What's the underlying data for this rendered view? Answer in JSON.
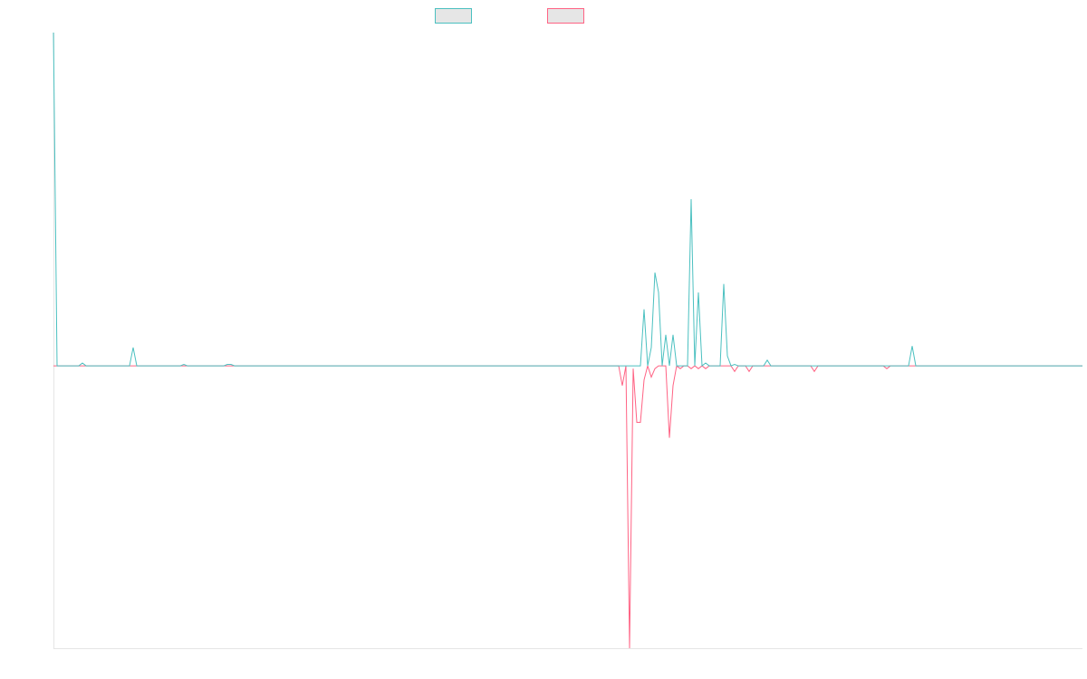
{
  "chart_data": {
    "type": "line",
    "title": "",
    "xlabel": "",
    "ylabel": "",
    "x": [
      0,
      1,
      2,
      3,
      4,
      5,
      6,
      7,
      8,
      9,
      10,
      11,
      12,
      13,
      14,
      15,
      16,
      17,
      18,
      19,
      20,
      21,
      22,
      23,
      24,
      25,
      26,
      27,
      28,
      29,
      30,
      31,
      32,
      33,
      34,
      35,
      36,
      37,
      38,
      39,
      40,
      41,
      42,
      43,
      44,
      45,
      46,
      47,
      48,
      49,
      50,
      51,
      52,
      53,
      54,
      55,
      56,
      57,
      58,
      59,
      60,
      61,
      62,
      63,
      64,
      65,
      66,
      67,
      68,
      69,
      70,
      71,
      72,
      73,
      74,
      75,
      76,
      77,
      78,
      79,
      80,
      81,
      82,
      83,
      84,
      85,
      86,
      87,
      88,
      89,
      90,
      91,
      92,
      93,
      94,
      95,
      96,
      97,
      98,
      99,
      100,
      101,
      102,
      103,
      104,
      105,
      106,
      107,
      108,
      109,
      110,
      111,
      112,
      113,
      114,
      115,
      116,
      117,
      118,
      119,
      120,
      121,
      122,
      123,
      124,
      125,
      126,
      127,
      128,
      129,
      130,
      131,
      132,
      133,
      134,
      135,
      136,
      137,
      138,
      139,
      140,
      141,
      142,
      143,
      144,
      145,
      146,
      147,
      148,
      149,
      150,
      151,
      152,
      153,
      154,
      155,
      156,
      157,
      158,
      159,
      160,
      161,
      162,
      163,
      164,
      165,
      166,
      167,
      168,
      169,
      170,
      171,
      172,
      173,
      174,
      175,
      176,
      177,
      178,
      179,
      180,
      181,
      182,
      183,
      184,
      185,
      186,
      187,
      188,
      189,
      190,
      191,
      192,
      193,
      194,
      195,
      196,
      197,
      198,
      199,
      200,
      201,
      202,
      203,
      204,
      205,
      206,
      207,
      208,
      209,
      210,
      211,
      212,
      213,
      214,
      215,
      216,
      217,
      218,
      219,
      220,
      221,
      222,
      223,
      224,
      225,
      226,
      227,
      228,
      229,
      230,
      231,
      232,
      233,
      234,
      235,
      236,
      237,
      238,
      239,
      240,
      241,
      242,
      243,
      244,
      245,
      246,
      247,
      248,
      249,
      250,
      251,
      252,
      253,
      254,
      255,
      256,
      257,
      258,
      259,
      260,
      261,
      262,
      263,
      264,
      265,
      266,
      267,
      268,
      269,
      270,
      271,
      272,
      273,
      274,
      275,
      276,
      277,
      278,
      279,
      280,
      281,
      282,
      283,
      284
    ],
    "ylim": [
      -100,
      118
    ],
    "grid": false,
    "legend": "top-center",
    "series": [
      {
        "color": "#4bc0c0",
        "values": [
          118,
          0,
          0,
          0,
          0,
          0,
          0,
          0,
          1,
          0,
          0,
          0,
          0,
          0,
          0,
          0,
          0,
          0,
          0,
          0,
          0,
          0,
          6.5,
          0,
          0,
          0,
          0,
          0,
          0,
          0,
          0,
          0,
          0,
          0,
          0,
          0,
          0.5,
          0,
          0,
          0,
          0,
          0,
          0,
          0,
          0,
          0,
          0,
          0,
          0.5,
          0.5,
          0,
          0,
          0,
          0,
          0,
          0,
          0,
          0,
          0,
          0,
          0,
          0,
          0,
          0,
          0,
          0,
          0,
          0,
          0,
          0,
          0,
          0,
          0,
          0,
          0,
          0,
          0,
          0,
          0,
          0,
          0,
          0,
          0,
          0,
          0,
          0,
          0,
          0,
          0,
          0,
          0,
          0,
          0,
          0,
          0,
          0,
          0,
          0,
          0,
          0,
          0,
          0,
          0,
          0,
          0,
          0,
          0,
          0,
          0,
          0,
          0,
          0,
          0,
          0,
          0,
          0,
          0,
          0,
          0,
          0,
          0,
          0,
          0,
          0,
          0,
          0,
          0,
          0,
          0,
          0,
          0,
          0,
          0,
          0,
          0,
          0,
          0,
          0,
          0,
          0,
          0,
          0,
          0,
          0,
          0,
          0,
          0,
          0,
          0,
          0,
          0,
          0,
          0,
          0,
          0,
          0,
          0,
          0,
          0,
          0,
          0,
          0,
          0,
          20,
          0,
          6.5,
          33,
          26,
          0,
          11,
          0,
          11,
          0,
          0,
          0,
          0,
          59,
          0,
          26,
          0,
          1,
          0,
          0,
          0,
          0,
          29,
          3.5,
          0,
          0.5,
          0,
          0,
          0,
          0,
          0,
          0,
          0,
          0,
          2,
          0,
          0,
          0,
          0,
          0,
          0,
          0,
          0,
          0,
          0,
          0,
          0,
          0,
          0,
          0,
          0,
          0,
          0,
          0,
          0,
          0,
          0,
          0,
          0,
          0,
          0,
          0,
          0,
          0,
          0,
          0,
          0,
          0,
          0,
          0,
          0,
          0,
          0,
          0,
          7,
          0,
          0,
          0,
          0,
          0,
          0,
          0,
          0,
          0,
          0,
          0,
          0,
          0,
          0,
          0,
          0,
          0,
          0,
          0,
          0,
          0,
          0,
          0,
          0,
          0,
          0,
          0,
          0,
          0,
          0,
          0,
          0,
          0,
          0,
          0,
          0,
          0,
          0,
          0,
          0,
          0,
          0,
          0,
          0,
          0,
          0,
          0
        ]
      },
      {
        "color": "#ff6384",
        "values": [
          0,
          0,
          0,
          0,
          0,
          0,
          0,
          0,
          0,
          0,
          0,
          0,
          0,
          0,
          0,
          0,
          0,
          0,
          0,
          0,
          0,
          0,
          0,
          0,
          0,
          0,
          0,
          0,
          0,
          0,
          0,
          0,
          0,
          0,
          0,
          0,
          0,
          0,
          0,
          0,
          0,
          0,
          0,
          0,
          0,
          0,
          0,
          0,
          0,
          0,
          0,
          0,
          0,
          0,
          0,
          0,
          0,
          0,
          0,
          0,
          0,
          0,
          0,
          0,
          0,
          0,
          0,
          0,
          0,
          0,
          0,
          0,
          0,
          0,
          0,
          0,
          0,
          0,
          0,
          0,
          0,
          0,
          0,
          0,
          0,
          0,
          0,
          0,
          0,
          0,
          0,
          0,
          0,
          0,
          0,
          0,
          0,
          0,
          0,
          0,
          0,
          0,
          0,
          0,
          0,
          0,
          0,
          0,
          0,
          0,
          0,
          0,
          0,
          0,
          0,
          0,
          0,
          0,
          0,
          0,
          0,
          0,
          0,
          0,
          0,
          0,
          0,
          0,
          0,
          0,
          0,
          0,
          0,
          0,
          0,
          0,
          0,
          0,
          0,
          0,
          0,
          0,
          0,
          0,
          0,
          0,
          0,
          0,
          0,
          0,
          0,
          0,
          0,
          0,
          0,
          0,
          0,
          -7,
          0,
          -100,
          -1,
          -20,
          -20,
          -5,
          0,
          -4,
          -1,
          0,
          0,
          0,
          -25.5,
          -7,
          0,
          -1,
          0,
          0,
          -1,
          0,
          -1,
          0,
          -1,
          0,
          0,
          0,
          0,
          0,
          0,
          0,
          -2,
          0,
          0,
          0,
          -2,
          0,
          0,
          0,
          0,
          0,
          0,
          0,
          0,
          0,
          0,
          0,
          0,
          0,
          0,
          0,
          0,
          0,
          -2,
          0,
          0,
          0,
          0,
          0,
          0,
          0,
          0,
          0,
          0,
          0,
          0,
          0,
          0,
          0,
          0,
          0,
          0,
          0,
          -1,
          0,
          0,
          0,
          0,
          0,
          0,
          0,
          0,
          0,
          0,
          0,
          0,
          0,
          0,
          0,
          0,
          0,
          0,
          0,
          0,
          0,
          0,
          0,
          0,
          0,
          0,
          0,
          0,
          0,
          0,
          0,
          0,
          0,
          0,
          0,
          0,
          0,
          0,
          0,
          0,
          0,
          0,
          0,
          0,
          0,
          0,
          0,
          0,
          0,
          0,
          0,
          0,
          0,
          0
        ]
      }
    ]
  }
}
